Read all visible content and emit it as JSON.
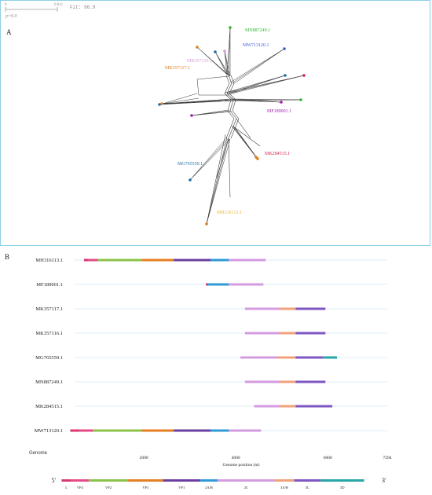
{
  "panelA": {
    "label": "A",
    "scale": {
      "left": "0",
      "right": "0.011"
    },
    "fit": "Fit: 96.9",
    "p_value": "p=0.0",
    "taxa": [
      {
        "name": "MN887249.1",
        "color": "#2db82d"
      },
      {
        "name": "MW713120.1",
        "color": "#3b5bd6"
      },
      {
        "name": "MK357116.1",
        "color": "#d69ad8"
      },
      {
        "name": "MK357117.1",
        "color": "#e07a1e"
      },
      {
        "name": "MF189001.1",
        "color": "#a21caf"
      },
      {
        "name": "MK284515.1",
        "color": "#d61f4c"
      },
      {
        "name": "MG765559.1",
        "color": "#1f6fa1"
      },
      {
        "name": "MH316113.1",
        "color": "#e8b42c"
      }
    ]
  },
  "panelB": {
    "label": "B",
    "genome_label": "Genome",
    "axis_title": "Genome position (nt)",
    "axis_ticks": [
      "2000",
      "4000",
      "6000",
      "7294"
    ],
    "five_prime": "5'",
    "three_prime": "3'",
    "regions": [
      {
        "name": "L",
        "color": "#d9376e"
      },
      {
        "name": "VP4",
        "color": "#e44a88"
      },
      {
        "name": "VP2",
        "color": "#8bc34a"
      },
      {
        "name": "VP3",
        "color": "#e67e22"
      },
      {
        "name": "VP1",
        "color": "#6b3fa0"
      },
      {
        "name": "2A/B",
        "color": "#2e9bd6"
      },
      {
        "name": "2C",
        "color": "#d39be0"
      },
      {
        "name": "3A/B",
        "color": "#f0a27a"
      },
      {
        "name": "3C",
        "color": "#7e57c2"
      },
      {
        "name": "3D",
        "color": "#26a6a6"
      }
    ],
    "sequences": [
      {
        "name": "MH316113.1"
      },
      {
        "name": "MF189001.1"
      },
      {
        "name": "MK357117.1"
      },
      {
        "name": "MK357116.1"
      },
      {
        "name": "MG765559.1"
      },
      {
        "name": "MN887249.1"
      },
      {
        "name": "MK284515.1"
      },
      {
        "name": "MW713120.1"
      }
    ]
  }
}
